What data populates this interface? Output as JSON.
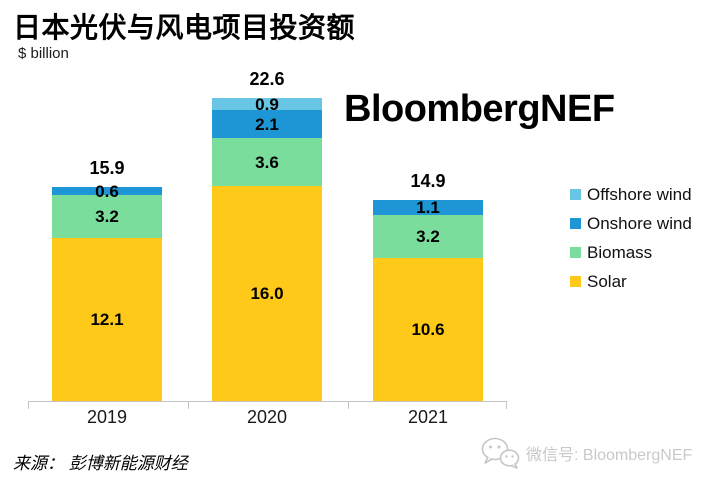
{
  "title": "日本光伏与风电项目投资额",
  "unit_label": "$ billion",
  "watermark": "BloombergNEF",
  "source_note": "来源： 彭博新能源财经",
  "wechat_badge": {
    "icon": "wechat-icon",
    "label": "微信号: BloombergNEF"
  },
  "colors": {
    "solar": "#FEC919",
    "biomass": "#7ADD9B",
    "onshore_wind": "#1E96D5",
    "offshore_wind": "#68C5E3",
    "axis": "#C4C4C4"
  },
  "chart_data": {
    "type": "bar",
    "stacked": true,
    "title": "日本光伏与风电项目投资额",
    "ylabel": "$ billion",
    "categories": [
      "2019",
      "2020",
      "2021"
    ],
    "series": [
      {
        "name": "Solar",
        "color": "#FEC919",
        "values": [
          12.1,
          16.0,
          10.6
        ]
      },
      {
        "name": "Biomass",
        "color": "#7ADD9B",
        "values": [
          3.2,
          3.6,
          3.2
        ]
      },
      {
        "name": "Onshore wind",
        "color": "#1E96D5",
        "values": [
          0.6,
          2.1,
          1.1
        ]
      },
      {
        "name": "Offshore wind",
        "color": "#68C5E3",
        "values": [
          0,
          0.9,
          0
        ]
      }
    ],
    "totals": [
      15.9,
      22.6,
      14.9
    ],
    "legend": [
      "Offshore wind",
      "Onshore wind",
      "Biomass",
      "Solar"
    ],
    "legend_position": "right",
    "grid": false,
    "ylim": [
      0,
      24
    ]
  }
}
